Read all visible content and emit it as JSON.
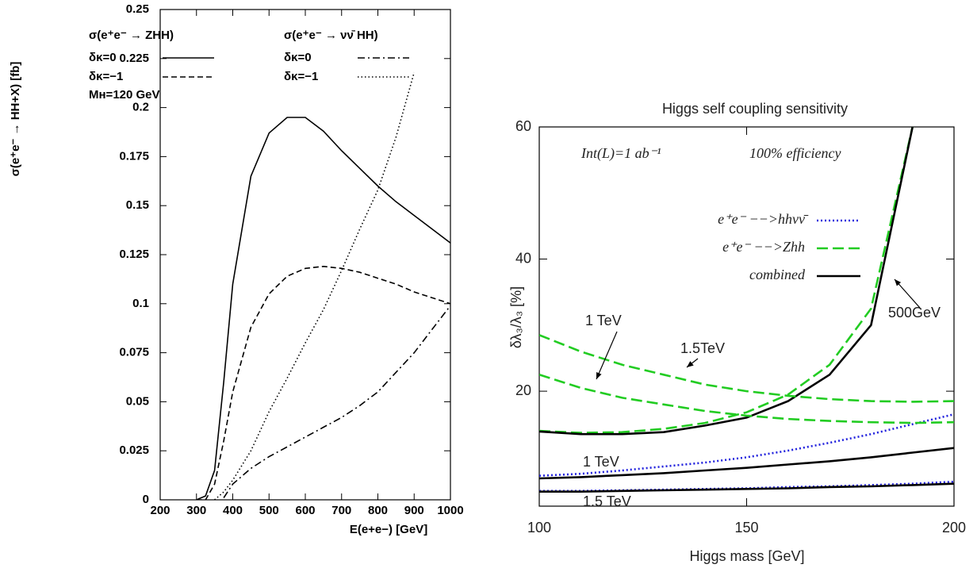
{
  "chart_data": [
    {
      "type": "line",
      "y_label": "σ(e⁺e⁻ → HH+X) [fb]",
      "x_label": "E(e+e−) [GeV]",
      "x": [
        300,
        325,
        350,
        375,
        400,
        450,
        500,
        550,
        600,
        650,
        700,
        750,
        800,
        850,
        900,
        950,
        1000
      ],
      "xlim": [
        200,
        1000
      ],
      "xticks": [
        200,
        300,
        400,
        500,
        600,
        700,
        800,
        900,
        1000
      ],
      "ylim": [
        0,
        0.25
      ],
      "yticks": [
        0,
        0.025,
        0.05,
        0.075,
        0.1,
        0.125,
        0.15,
        0.175,
        0.2,
        0.225,
        0.25
      ],
      "annotations": [
        "Mʜ=120 GeV"
      ],
      "series": [
        {
          "group": "σ(e⁺e⁻ → ZHH)",
          "name": "δκ=0",
          "color": "#000000",
          "style": "solid",
          "values": [
            0,
            0.002,
            0.015,
            0.06,
            0.11,
            0.165,
            0.187,
            0.195,
            0.195,
            0.188,
            0.178,
            0.169,
            0.16,
            0.152,
            0.145,
            0.138,
            0.131
          ]
        },
        {
          "group": "σ(e⁺e⁻ → ZHH)",
          "name": "δκ=−1",
          "color": "#000000",
          "style": "dashed",
          "values": [
            0,
            0,
            0.008,
            0.03,
            0.055,
            0.088,
            0.105,
            0.114,
            0.118,
            0.119,
            0.118,
            0.116,
            0.113,
            0.11,
            0.106,
            0.103,
            0.1
          ]
        },
        {
          "group": "σ(e⁺e⁻ → νν̄ HH)",
          "name": "δκ=0",
          "color": "#000000",
          "style": "dashdot",
          "values": [
            null,
            null,
            null,
            0.001,
            0.008,
            0.016,
            0.022,
            0.027,
            0.032,
            0.037,
            0.042,
            0.048,
            0.055,
            0.065,
            0.075,
            0.087,
            0.099
          ]
        },
        {
          "group": "σ(e⁺e⁻ → νν̄ HH)",
          "name": "δκ=−1",
          "color": "#000000",
          "style": "dotted",
          "values": [
            null,
            null,
            0,
            0.004,
            0.01,
            0.025,
            0.045,
            0.062,
            0.08,
            0.097,
            0.117,
            0.138,
            0.158,
            0.185,
            0.218,
            null,
            null
          ]
        }
      ]
    },
    {
      "type": "line",
      "title": "Higgs self coupling sensitivity",
      "y_label": "δλ₃/λ₃ [%]",
      "x_label": "Higgs mass [GeV]",
      "x": [
        100,
        110,
        120,
        130,
        140,
        150,
        160,
        170,
        180,
        190,
        200
      ],
      "xlim": [
        100,
        200
      ],
      "xticks": [
        100,
        150,
        200
      ],
      "ylim": [
        2.6,
        60
      ],
      "yticks": [
        20,
        40,
        60
      ],
      "annotations": [
        "Int(L)=1 ab⁻¹",
        "100% efficiency",
        "1 TeV",
        "1.5TeV",
        "500GeV",
        "1 TeV",
        "1.5 TeV"
      ],
      "series": [
        {
          "name": "e⁺e⁻ −−>hhνν̄",
          "color": "#2222dd",
          "style": "dotted",
          "values": [
            7.2,
            7.5,
            8,
            8.6,
            9.2,
            10,
            11,
            12.2,
            13.5,
            15,
            16.5
          ]
        },
        {
          "name": "e⁺e⁻ −−>Zhh",
          "color": "#22cc22",
          "style": "dashed",
          "values": [
            14,
            13.7,
            13.8,
            14.3,
            15.2,
            16.8,
            19.5,
            24,
            32.5,
            60,
            null
          ]
        },
        {
          "name": "combined",
          "color": "#000000",
          "style": "solid",
          "values": [
            13.9,
            13.5,
            13.5,
            13.8,
            14.8,
            16,
            18.5,
            22.5,
            30,
            60,
            null
          ]
        },
        {
          "name": "e⁺e⁻ −−>Zhh",
          "color": "#22cc22",
          "style": "dashed",
          "values": [
            28.5,
            26,
            24,
            22.5,
            21,
            20,
            19.3,
            18.8,
            18.5,
            18.4,
            18.5
          ]
        },
        {
          "name": "e⁺e⁻ −−>Zhh",
          "color": "#22cc22",
          "style": "dashed",
          "values": [
            22.5,
            20.5,
            19,
            18,
            17,
            16.3,
            15.8,
            15.5,
            15.3,
            15.2,
            15.3
          ]
        },
        {
          "name": "combined",
          "color": "#000000",
          "style": "solid",
          "values": [
            6.8,
            7,
            7.3,
            7.6,
            8,
            8.4,
            8.9,
            9.4,
            10,
            10.7,
            11.4
          ]
        },
        {
          "name": "e⁺e⁻ −−>hhνν̄",
          "color": "#2222dd",
          "style": "dotted",
          "values": [
            4.9,
            4.9,
            5,
            5.1,
            5.2,
            5.3,
            5.5,
            5.6,
            5.8,
            6,
            6.3
          ]
        },
        {
          "name": "combined",
          "color": "#000000",
          "style": "solid",
          "values": [
            4.8,
            4.8,
            4.9,
            5,
            5.1,
            5.2,
            5.3,
            5.5,
            5.6,
            5.8,
            6
          ]
        }
      ]
    }
  ]
}
